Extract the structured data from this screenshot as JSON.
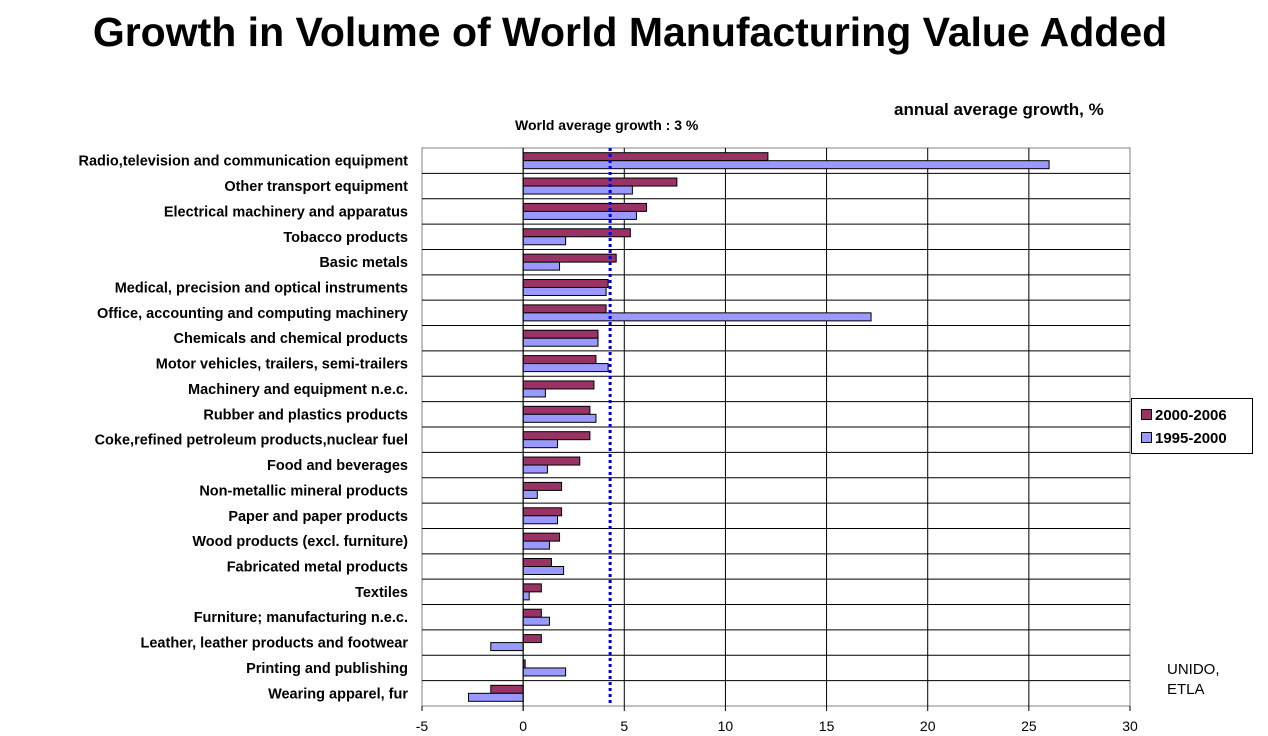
{
  "chart_data": {
    "type": "bar",
    "orientation": "horizontal",
    "title": "Growth in Volume of World Manufacturing Value Added",
    "subtitle": "annual average growth, %",
    "annotation": "World average growth : 3 %",
    "reference_line": {
      "value": 4.3,
      "style": "dotted",
      "color": "#0000cc"
    },
    "source": [
      "UNIDO,",
      "ETLA"
    ],
    "xlim": [
      -5,
      30
    ],
    "xticks": [
      -5,
      0,
      5,
      10,
      15,
      20,
      25,
      30
    ],
    "grid": true,
    "legend_position": "right",
    "categories": [
      "Radio,television and communication equipment",
      "Other transport equipment",
      "Electrical machinery and apparatus",
      "Tobacco products",
      "Basic metals",
      "Medical, precision and optical instruments",
      "Office, accounting and computing machinery",
      "Chemicals and chemical products",
      "Motor vehicles, trailers, semi-trailers",
      "Machinery and equipment n.e.c.",
      "Rubber and plastics products",
      "Coke,refined petroleum products,nuclear fuel",
      "Food and beverages",
      "Non-metallic mineral products",
      "Paper and paper products",
      "Wood products (excl. furniture)",
      "Fabricated metal products",
      "Textiles",
      "Furniture; manufacturing n.e.c.",
      "Leather, leather products and footwear",
      "Printing and publishing",
      "Wearing apparel, fur"
    ],
    "series": [
      {
        "name": "2000-2006",
        "color": "#993366",
        "values": [
          12.1,
          7.6,
          6.1,
          5.3,
          4.6,
          4.2,
          4.1,
          3.7,
          3.6,
          3.5,
          3.3,
          3.3,
          2.8,
          1.9,
          1.9,
          1.8,
          1.4,
          0.9,
          0.9,
          0.9,
          0.1,
          -1.6
        ]
      },
      {
        "name": "1995-2000",
        "color": "#9999ff",
        "values": [
          26.0,
          5.4,
          5.6,
          2.1,
          1.8,
          4.1,
          17.2,
          3.7,
          4.2,
          1.1,
          3.6,
          1.7,
          1.2,
          0.7,
          1.7,
          1.3,
          2.0,
          0.3,
          1.3,
          -1.6,
          2.1,
          -2.7
        ]
      }
    ]
  }
}
